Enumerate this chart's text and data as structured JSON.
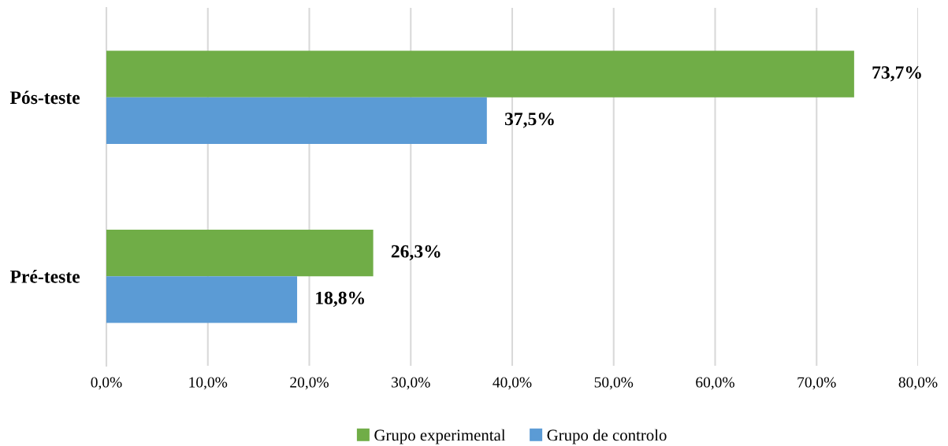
{
  "chart_data": {
    "type": "bar",
    "orientation": "horizontal",
    "categories": [
      "Pós-teste",
      "Pré-teste"
    ],
    "series": [
      {
        "name": "Grupo experimental",
        "color": "#70ad47",
        "values": [
          73.7,
          26.3
        ],
        "value_labels": [
          "73,7%",
          "26,3%"
        ]
      },
      {
        "name": "Grupo de controlo",
        "color": "#5b9bd5",
        "values": [
          37.5,
          18.8
        ],
        "value_labels": [
          "37,5%",
          "18,8%"
        ]
      }
    ],
    "xlim": [
      0,
      80
    ],
    "xticks": [
      {
        "value": 0,
        "label": "0,0%"
      },
      {
        "value": 10,
        "label": "10,0%"
      },
      {
        "value": 20,
        "label": "20,0%"
      },
      {
        "value": 30,
        "label": "30,0%"
      },
      {
        "value": 40,
        "label": "40,0%"
      },
      {
        "value": 50,
        "label": "50,0%"
      },
      {
        "value": 60,
        "label": "60,0%"
      },
      {
        "value": 70,
        "label": "70,0%"
      },
      {
        "value": 80,
        "label": "80,0%"
      }
    ],
    "grid": "x",
    "legend": "bottom"
  }
}
